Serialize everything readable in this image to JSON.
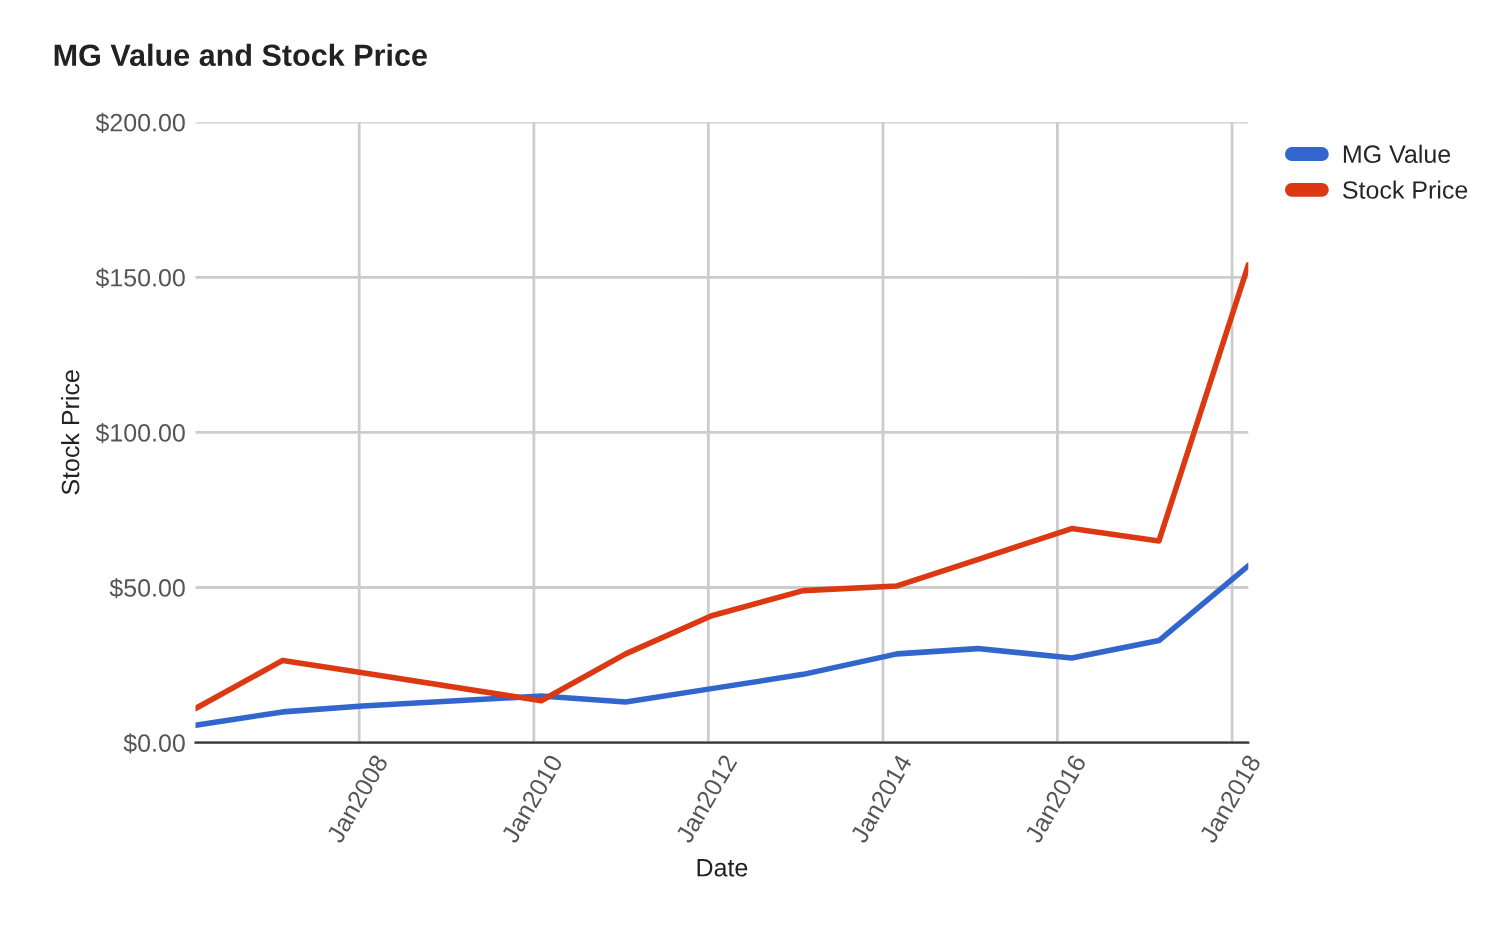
{
  "chart_data": {
    "type": "line",
    "title": "MG Value and Stock Price",
    "xlabel": "Date",
    "ylabel": "Stock Price",
    "x": [
      "2006-02-15",
      "2007-02-15",
      "2008-01-15",
      "2010-02-01",
      "2011-01-20",
      "2012-01-15",
      "2013-02-01",
      "2014-03-01",
      "2015-02-01",
      "2016-03-01",
      "2017-03-01",
      "2018-03-10"
    ],
    "series": [
      {
        "name": "MG Value",
        "color": "#3366cc",
        "values": [
          5.6,
          9.9,
          11.8,
          15,
          13.1,
          17.4,
          22,
          28.6,
          30.3,
          27.3,
          32.9,
          57
        ]
      },
      {
        "name": "Stock Price",
        "color": "#dc3912",
        "values": [
          11,
          26.5,
          22.5,
          13.5,
          28.6,
          40.9,
          49,
          50.5,
          59,
          69,
          65,
          154
        ]
      }
    ],
    "xlim": [
      "2006-02-15",
      "2018-03-10"
    ],
    "xticks": [
      {
        "value": "2008-01-01",
        "label": "Jan2008"
      },
      {
        "value": "2010-01-01",
        "label": "Jan2010"
      },
      {
        "value": "2012-01-01",
        "label": "Jan2012"
      },
      {
        "value": "2014-01-01",
        "label": "Jan2014"
      },
      {
        "value": "2016-01-01",
        "label": "Jan2016"
      },
      {
        "value": "2018-01-01",
        "label": "Jan2018"
      }
    ],
    "ylim": [
      0,
      200
    ],
    "yticks": [
      {
        "value": 0,
        "label": "$0.00"
      },
      {
        "value": 50,
        "label": "$50.00"
      },
      {
        "value": 100,
        "label": "$100.00"
      },
      {
        "value": 150,
        "label": "$150.00"
      },
      {
        "value": 200,
        "label": "$200.00"
      }
    ],
    "grid": true,
    "legend": "top right",
    "marker": "none",
    "line_style": "solid"
  }
}
